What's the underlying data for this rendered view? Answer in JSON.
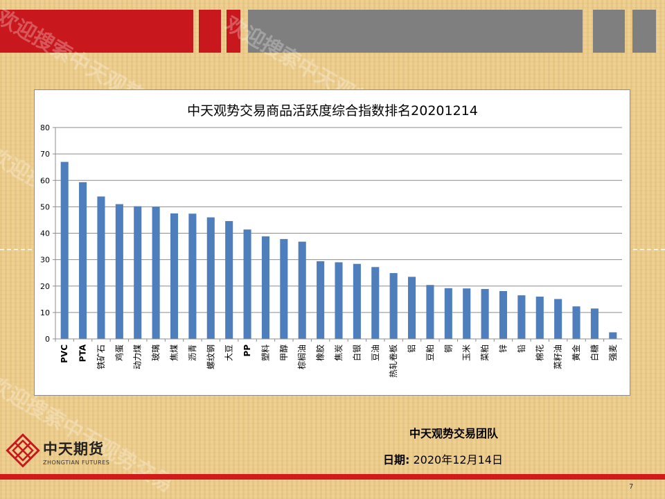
{
  "chart_data": {
    "type": "bar",
    "title": "中天观势交易商品活跃度综合指数排名20201214",
    "categories": [
      "PVC",
      "PTA",
      "铁矿石",
      "鸡蛋",
      "动力煤",
      "玻璃",
      "焦煤",
      "沥青",
      "螺纹钢",
      "大豆",
      "PP",
      "塑料",
      "甲醇",
      "棕榈油",
      "橡胶",
      "焦炭",
      "白银",
      "豆油",
      "热轧卷板",
      "铝",
      "豆粕",
      "铜",
      "玉米",
      "菜粕",
      "锌",
      "铅",
      "棉花",
      "菜籽油",
      "黄金",
      "白糖",
      "强麦"
    ],
    "values": [
      67,
      59.3,
      53.9,
      51,
      50.2,
      50,
      47.5,
      47.4,
      46,
      44.6,
      41.4,
      38.8,
      37.8,
      36.8,
      29.4,
      29,
      28.4,
      27.2,
      24.9,
      23.5,
      20.4,
      19.2,
      19.1,
      18.9,
      18.1,
      16.5,
      16,
      15.1,
      12.3,
      11.5,
      2.5
    ],
    "ylim": [
      0,
      80
    ],
    "yticks": [
      0,
      10,
      20,
      30,
      40,
      50,
      60,
      70,
      80
    ],
    "grid": true,
    "bar_color": "#4f7ebd",
    "grid_color": "#8c8c8c"
  },
  "footer": {
    "team": "中天观势交易团队",
    "date_label": "日期:",
    "date_value": "2020年12月14日",
    "page_number": "7"
  },
  "logo": {
    "name": "中天期货",
    "subtitle": "ZHONGTIAN FUTURES"
  },
  "watermark": "欢迎搜索中天观势交易",
  "colors": {
    "header_red": "#c8171d",
    "header_gray": "#7f7f7f",
    "footer_red": "#d11a1a"
  }
}
